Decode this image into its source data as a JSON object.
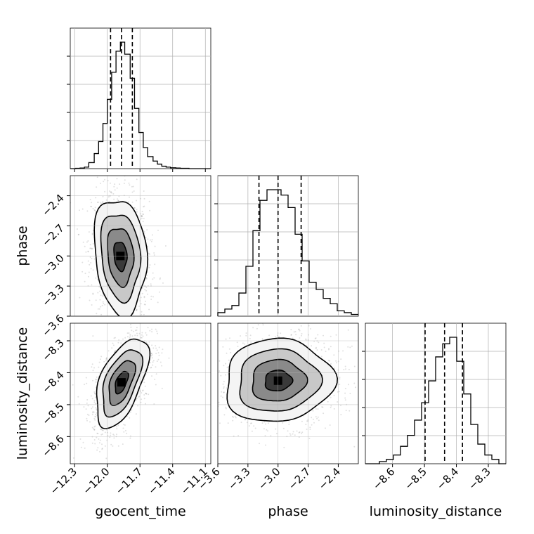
{
  "chart_data": {
    "type": "corner",
    "parameters": [
      "geocent_time",
      "phase",
      "luminosity_distance"
    ],
    "axis_labels": {
      "geocent_time": "geocent_time",
      "phase": "phase",
      "luminosity_distance": "luminosity_distance"
    },
    "ranges": {
      "geocent_time": [
        -12.34,
        -11.05
      ],
      "phase": [
        -3.6,
        -2.2
      ],
      "luminosity_distance": [
        -8.685,
        -8.245
      ]
    },
    "ticks": {
      "geocent_time": [
        "−12.3",
        "−12.0",
        "−11.7",
        "−11.4",
        "−11.1"
      ],
      "phase": [
        "−3.6",
        "−3.3",
        "−3.0",
        "−2.7",
        "−2.4"
      ],
      "luminosity_distance": [
        "−8.6",
        "−8.5",
        "−8.4",
        "−8.3"
      ]
    },
    "tick_values": {
      "geocent_time": [
        -12.3,
        -12.0,
        -11.7,
        -11.4,
        -11.1
      ],
      "phase": [
        -3.6,
        -3.3,
        -3.0,
        -2.7,
        -2.4
      ],
      "luminosity_distance": [
        -8.6,
        -8.5,
        -8.4,
        -8.3
      ]
    },
    "quantiles": {
      "geocent_time": [
        -11.97,
        -11.87,
        -11.77
      ],
      "phase": [
        -3.19,
        -3.0,
        -2.77
      ],
      "luminosity_distance": [
        -8.498,
        -8.437,
        -8.381
      ]
    },
    "histograms": {
      "geocent_time": {
        "edges": [
          -12.34,
          -12.29,
          -12.25,
          -12.21,
          -12.17,
          -12.12,
          -12.08,
          -12.04,
          -12.0,
          -11.96,
          -11.92,
          -11.88,
          -11.84,
          -11.79,
          -11.75,
          -11.71,
          -11.67,
          -11.63,
          -11.58,
          -11.54,
          -11.5,
          -11.46,
          -11.42,
          -11.37,
          -11.33,
          -11.29,
          -11.25,
          -11.21,
          -11.17,
          -11.12,
          -11.08,
          -11.05
        ],
        "counts": [
          0,
          1,
          2,
          5,
          20,
          50,
          90,
          150,
          230,
          320,
          390,
          420,
          380,
          300,
          200,
          120,
          70,
          40,
          25,
          15,
          8,
          5,
          3,
          2,
          1,
          1,
          0,
          0,
          0,
          0,
          0
        ]
      },
      "phase": {
        "edges": [
          -3.6,
          -3.53,
          -3.46,
          -3.39,
          -3.32,
          -3.25,
          -3.18,
          -3.11,
          -3.04,
          -2.97,
          -2.9,
          -2.83,
          -2.76,
          -2.69,
          -2.62,
          -2.55,
          -2.48,
          -2.41,
          -2.34,
          -2.27,
          -2.2
        ],
        "counts": [
          2,
          4,
          6,
          13,
          28,
          48,
          65,
          71,
          71,
          68,
          61,
          46,
          31,
          19,
          15,
          10,
          7,
          3,
          2,
          1
        ]
      },
      "luminosity_distance": {
        "edges": [
          -8.685,
          -8.663,
          -8.641,
          -8.619,
          -8.597,
          -8.575,
          -8.553,
          -8.531,
          -8.509,
          -8.487,
          -8.465,
          -8.443,
          -8.421,
          -8.399,
          -8.377,
          -8.355,
          -8.333,
          -8.311,
          -8.289,
          -8.267,
          -8.245
        ],
        "counts": [
          0,
          0,
          1,
          2,
          4,
          8,
          13,
          20,
          28,
          38,
          49,
          55,
          58,
          47,
          32,
          18,
          9,
          4,
          2,
          0
        ]
      }
    },
    "contours_2d": [
      {
        "x": "geocent_time",
        "y": "phase",
        "center": [
          -11.88,
          -3.0
        ],
        "sigma": [
          0.12,
          0.29
        ],
        "correlation": -0.15
      },
      {
        "x": "geocent_time",
        "y": "luminosity_distance",
        "center": [
          -11.87,
          -8.43
        ],
        "sigma": [
          0.12,
          0.07
        ],
        "correlation": 0.55
      },
      {
        "x": "phase",
        "y": "luminosity_distance",
        "center": [
          -3.0,
          -8.425
        ],
        "sigma": [
          0.27,
          0.065
        ],
        "correlation": 0.05
      }
    ],
    "contour_levels_sigma": [
      0.5,
      1.0,
      1.5,
      2.0
    ],
    "grid": true,
    "colors": {
      "line": "#000000",
      "grid": "#b0b0b0",
      "density": "#000000"
    }
  }
}
